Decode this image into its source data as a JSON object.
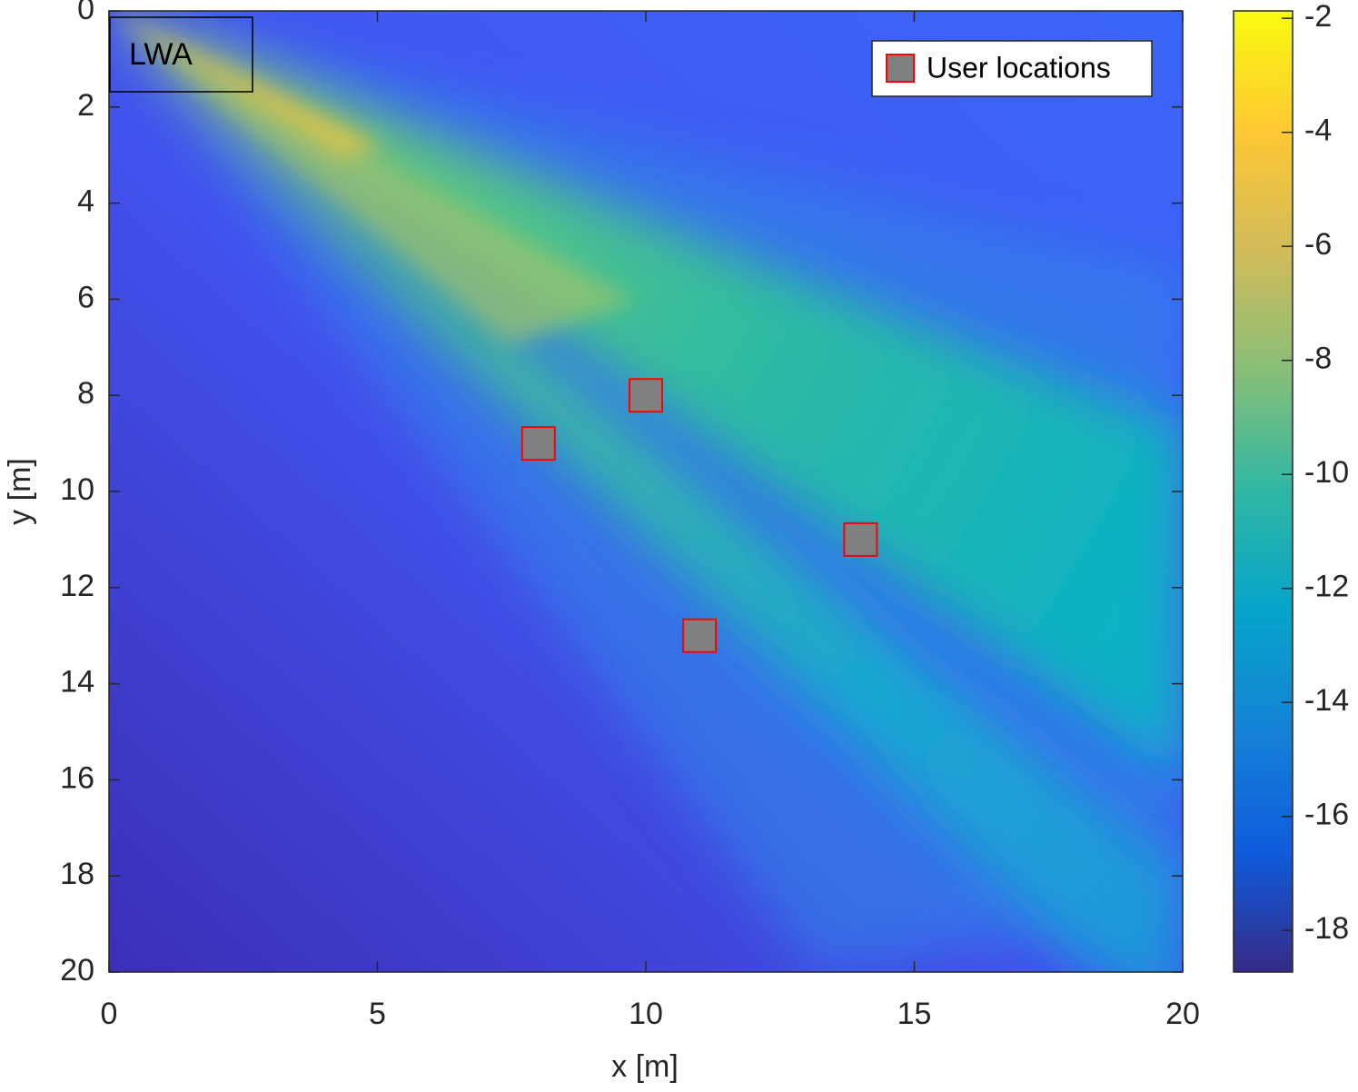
{
  "chart_data": {
    "type": "scatter",
    "xlabel": "x [m]",
    "ylabel": "y [m]",
    "xlim": [
      0,
      20
    ],
    "ylim": [
      0,
      20
    ],
    "y_direction": "reverse",
    "xticks": [
      0,
      5,
      10,
      15,
      20
    ],
    "yticks": [
      0,
      2,
      4,
      6,
      8,
      10,
      12,
      14,
      16,
      18,
      20
    ],
    "series": [
      {
        "name": "User locations",
        "color": "#808080",
        "edgecolor": "#ff0000",
        "x": [
          8,
          10,
          11,
          14
        ],
        "values": [
          9,
          8,
          13,
          11
        ]
      }
    ],
    "legend": "northeast",
    "annotation": "LWA",
    "colorbar": {
      "clim": [
        -18.73,
        -1.87
      ],
      "ticks": [
        -2,
        -4,
        -6,
        -8,
        -10,
        -12,
        -14,
        -16,
        -18
      ],
      "colormap": [
        "#352a87",
        "#0f5cdd",
        "#1481d6",
        "#06a4ca",
        "#2eb7a4",
        "#87bf77",
        "#d1bb59",
        "#fec832",
        "#f9fb0e"
      ]
    }
  }
}
